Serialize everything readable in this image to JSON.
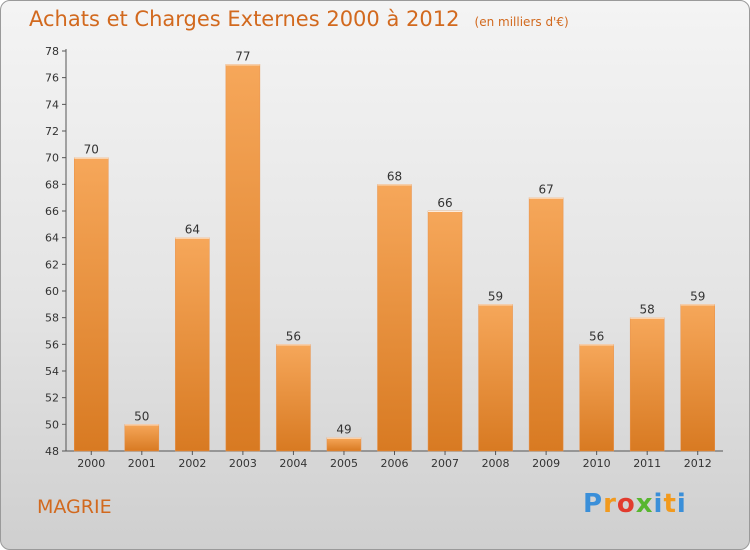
{
  "header": {
    "title": "Achats et Charges Externes 2000 à 2012",
    "unit": "(en milliers d'€)"
  },
  "footer": {
    "commune": "MAGRIE",
    "logo_letters": [
      "P",
      "r",
      "o",
      "x",
      "i",
      "t",
      "i"
    ],
    "logo_colors": [
      "#3a8fd9",
      "#f29a1d",
      "#e23b2e",
      "#58b62f",
      "#3a8fd9",
      "#f29a1d",
      "#3a8fd9"
    ]
  },
  "colors": {
    "bar_top": "#f6a75a",
    "bar_bottom": "#d87a22",
    "text": "#d2691e"
  },
  "chart_data": {
    "type": "bar",
    "title": "Achats et Charges Externes 2000 à 2012",
    "subtitle": "(en milliers d'€)",
    "categories": [
      "2000",
      "2001",
      "2002",
      "2003",
      "2004",
      "2005",
      "2006",
      "2007",
      "2008",
      "2009",
      "2010",
      "2011",
      "2012"
    ],
    "values": [
      70,
      50,
      64,
      77,
      56,
      49,
      68,
      66,
      59,
      67,
      56,
      58,
      59
    ],
    "ylim": [
      48,
      78
    ],
    "yticks": [
      48,
      50,
      52,
      54,
      56,
      58,
      60,
      62,
      64,
      66,
      68,
      70,
      72,
      74,
      76,
      78
    ],
    "grid": false,
    "xlabel": "",
    "ylabel": ""
  }
}
